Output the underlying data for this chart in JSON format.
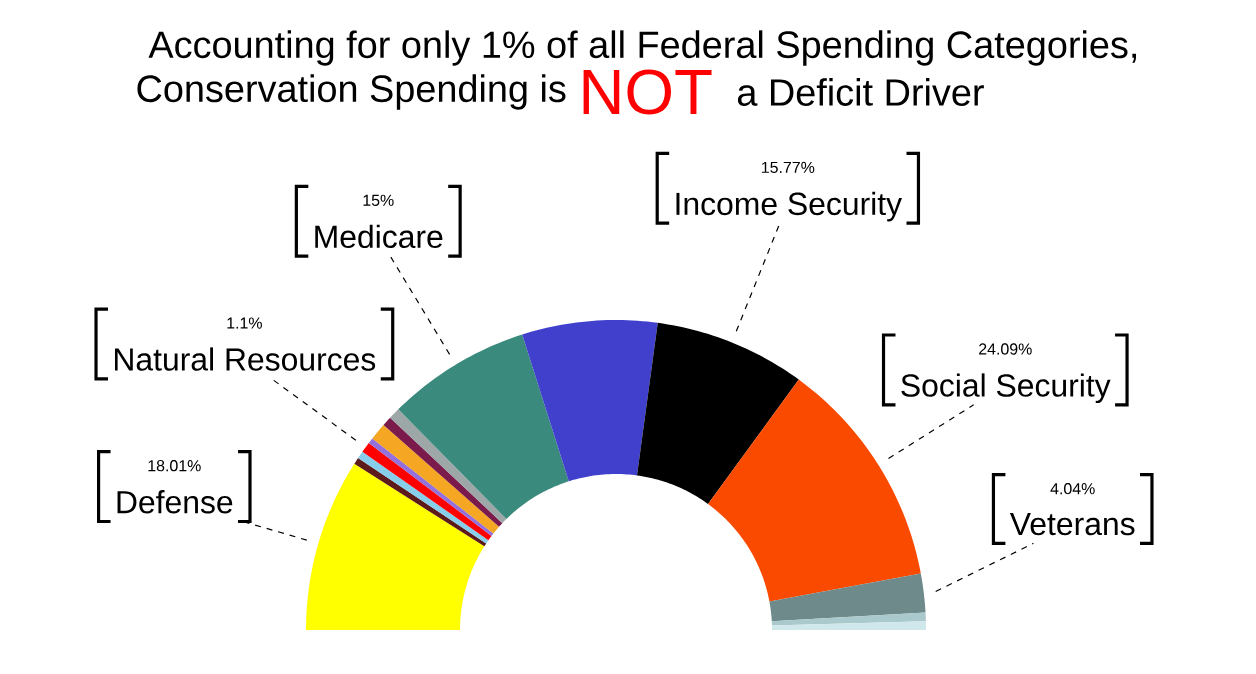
{
  "chart_data": {
    "type": "donut",
    "title": "Accounting for only 1% of all Federal Spending Categories,",
    "subtitle": "Conservation Spending is",
    "annotations": [
      "NOT",
      "a Deficit Driver"
    ],
    "categories": [
      "Defense",
      null,
      null,
      "Natural Resources",
      null,
      null,
      null,
      null,
      "Medicare",
      null,
      "Income Security",
      "Social Security",
      "Veterans",
      null,
      null
    ],
    "values": [
      18.01,
      0.7,
      0.8,
      1.1,
      0.6,
      1.8,
      1.0,
      1.2,
      15,
      14.09,
      15.77,
      24.09,
      4.04,
      0.9,
      0.9
    ],
    "value_labels": [
      "18.01%",
      null,
      null,
      "1.1%",
      null,
      null,
      null,
      null,
      "15%",
      null,
      "15.77%",
      "24.09%",
      "4.04%",
      null,
      null
    ],
    "colors": [
      "#ffff00",
      "#5c1a1a",
      "#87ceeb",
      "#ff0000",
      "#9370db",
      "#f5a623",
      "#7b1b4b",
      "#9ea7a7",
      "#3a8a7e",
      "#4040cc",
      "#000000",
      "#fa4a00",
      "#6e8a8a",
      "#a9c9cc",
      "#d0e8ec"
    ]
  }
}
